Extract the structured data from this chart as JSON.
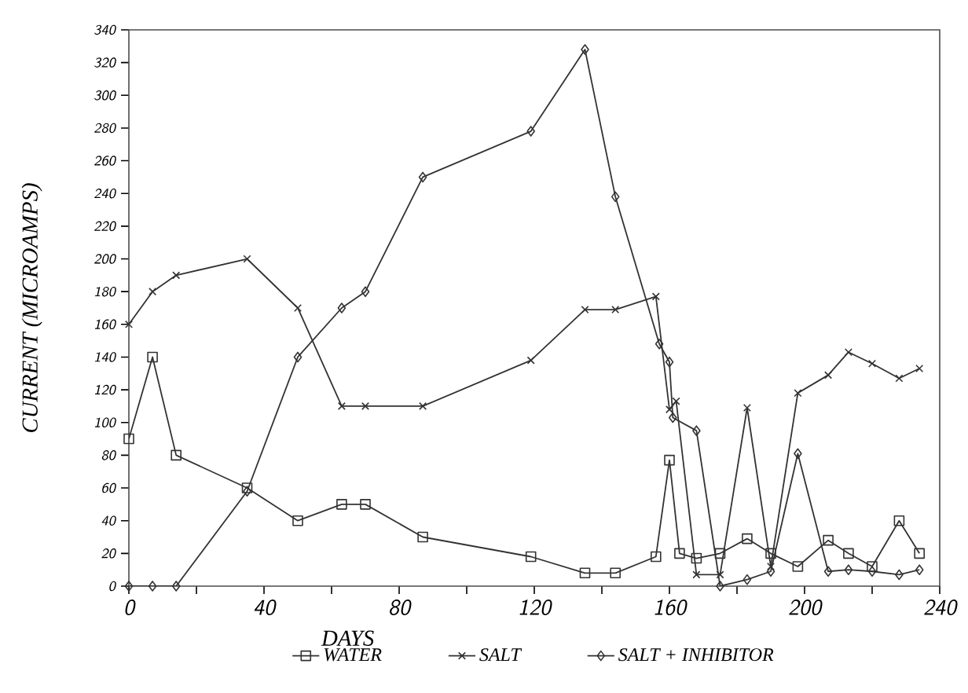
{
  "chart_data": {
    "type": "line",
    "xlabel": "DAYS",
    "ylabel": "CURRENT (MICROAMPS)",
    "xlim": [
      0,
      240
    ],
    "ylim": [
      0,
      340
    ],
    "xticks": [
      0,
      {
        "value": 20,
        "label": null
      },
      40,
      {
        "value": 60,
        "label": null
      },
      80,
      {
        "value": 100,
        "label": null
      },
      120,
      {
        "value": 140,
        "label": null
      },
      160,
      {
        "value": 180,
        "label": null
      },
      200,
      {
        "value": 220,
        "label": null
      },
      240
    ],
    "yticks": [
      0,
      20,
      40,
      60,
      80,
      100,
      120,
      140,
      160,
      180,
      200,
      220,
      240,
      260,
      280,
      300,
      320,
      340
    ],
    "legend": "bottom",
    "grid": false,
    "series": [
      {
        "name": "WATER",
        "color": "#333333",
        "marker": "square",
        "x": [
          0,
          7,
          14,
          35,
          50,
          63,
          70,
          87,
          119,
          135,
          144,
          156,
          160,
          163,
          168,
          175,
          183,
          190,
          198,
          207,
          213,
          220,
          228,
          234
        ],
        "values": [
          90,
          140,
          80,
          60,
          40,
          50,
          50,
          30,
          18,
          8,
          8,
          18,
          77,
          20,
          17,
          20,
          29,
          20,
          12,
          28,
          20,
          12,
          40,
          20
        ]
      },
      {
        "name": "SALT",
        "color": "#333333",
        "marker": "cross",
        "x": [
          0,
          7,
          14,
          35,
          50,
          63,
          70,
          87,
          119,
          135,
          144,
          156,
          160,
          162,
          168,
          175,
          183,
          190,
          198,
          207,
          213,
          220,
          228,
          234
        ],
        "values": [
          160,
          180,
          190,
          200,
          170,
          110,
          110,
          110,
          138,
          169,
          169,
          177,
          108,
          113,
          7,
          7,
          109,
          12,
          118,
          129,
          143,
          136,
          127,
          133
        ]
      },
      {
        "name": "SALT + INHIBITOR",
        "color": "#333333",
        "marker": "diamond",
        "x": [
          0,
          7,
          14,
          35,
          50,
          63,
          70,
          87,
          119,
          135,
          144,
          157,
          160,
          161,
          168,
          175,
          183,
          190,
          198,
          207,
          213,
          220,
          228,
          234
        ],
        "values": [
          0,
          0,
          0,
          58,
          140,
          170,
          180,
          250,
          278,
          328,
          238,
          148,
          137,
          103,
          95,
          0,
          4,
          9,
          81,
          9,
          10,
          9,
          7,
          10
        ]
      }
    ]
  }
}
